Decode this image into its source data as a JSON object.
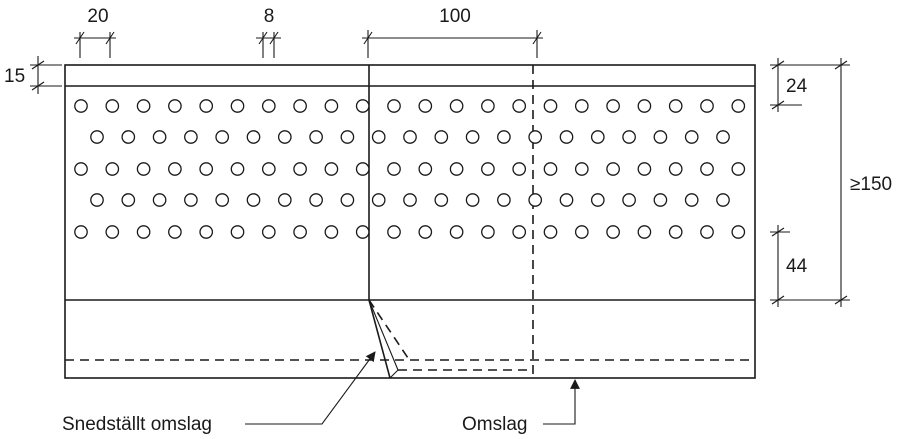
{
  "dimensions": {
    "hole_spacing": "20",
    "hole_diameter": "8",
    "fold_width": "100",
    "top_strip": "15",
    "top_edge_to_holes": "24",
    "total_height": "≥150",
    "holes_to_bottom_band": "44"
  },
  "callouts": {
    "angled_fold": "Snedställt omslag",
    "fold": "Omslag"
  }
}
